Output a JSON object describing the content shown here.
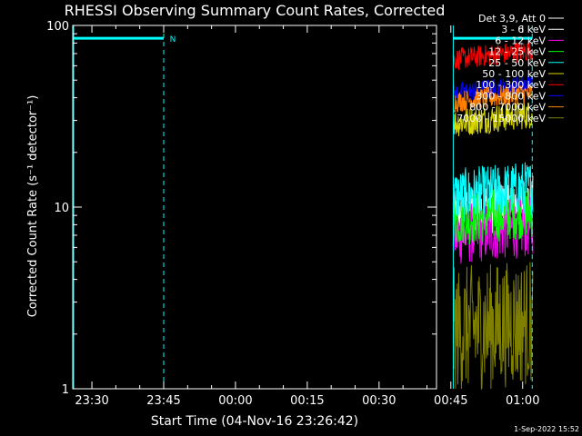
{
  "chart_data": {
    "type": "line",
    "title": "RHESSI Observing Summary Count Rates, Corrected",
    "xlabel": "Start Time (04-Nov-16 23:26:42)",
    "ylabel": "Corrected Count Rate (s⁻¹ detector⁻¹)",
    "y_scale": "log",
    "ylim": [
      1,
      100
    ],
    "y_ticks": [
      {
        "value": 1,
        "label": "1"
      },
      {
        "value": 10,
        "label": "10"
      },
      {
        "value": 100,
        "label": "100"
      }
    ],
    "xlim_minutes": [
      -4,
      72
    ],
    "x_ticks": [
      {
        "minutes": 0,
        "label": "23:30"
      },
      {
        "minutes": 15,
        "label": "23:45"
      },
      {
        "minutes": 30,
        "label": "00:00"
      },
      {
        "minutes": 45,
        "label": "00:15"
      },
      {
        "minutes": 60,
        "label": "00:30"
      },
      {
        "minutes": 75,
        "label": "00:45"
      },
      {
        "minutes": 90,
        "label": "01:00"
      }
    ],
    "legend_header": "Det 3,9, Att 0",
    "legend_position": "top-right outside plot",
    "data_start_minutes": 75.5,
    "data_end_minutes": 92,
    "series": [
      {
        "name": "3 - 6 keV",
        "color": "#ffffff",
        "level": 9.5,
        "spread": 0.15
      },
      {
        "name": "6 - 12 keV",
        "color": "#ff00ff",
        "level": 7.0,
        "spread": 0.17
      },
      {
        "name": "12 - 25 keV",
        "color": "#00ff00",
        "level": 8.5,
        "spread": 0.15
      },
      {
        "name": "25 - 50 keV",
        "color": "#00ffff",
        "level": 11.5,
        "spread": 0.15
      },
      {
        "name": "50 - 100 keV",
        "color": "#d8d800",
        "level": 29,
        "spread": 0.08
      },
      {
        "name": "100 - 300 keV",
        "color": "#ff0000",
        "level": 65,
        "spread": 0.06
      },
      {
        "name": "300 - 800 keV",
        "color": "#0000ff",
        "level": 42,
        "spread": 0.06
      },
      {
        "name": "800 - 7000 keV",
        "color": "#ff8000",
        "level": 38,
        "spread": 0.06
      },
      {
        "name": "7000 - 15000 keV",
        "color": "#808000",
        "level": 2.1,
        "spread": 0.35
      }
    ],
    "saa_bars": [
      {
        "start_minutes": -4,
        "end_minutes": 15,
        "value": 85
      },
      {
        "start_minutes": 75.5,
        "end_minutes": 92,
        "value": 85
      }
    ],
    "night_marker": {
      "minutes": 15.5,
      "label": "N"
    },
    "vertical_markers_minutes": [
      -4,
      15,
      75.5,
      92
    ]
  },
  "footer_date": "1-Sep-2022 15:52"
}
